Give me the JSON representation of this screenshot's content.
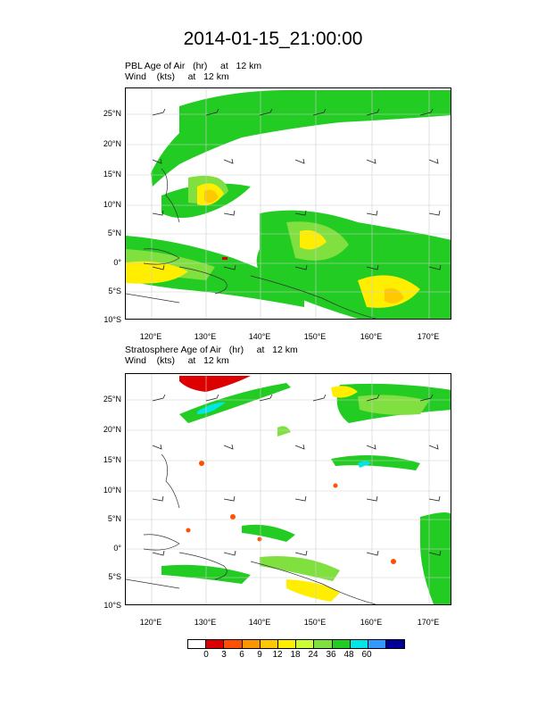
{
  "title": "2014-01-15_21:00:00",
  "panels": [
    {
      "line1": "PBL Age of Air   (hr)     at   12 km",
      "line2": "Wind    (kts)     at   12 km"
    },
    {
      "line1": "Stratosphere Age of Air   (hr)     at   12 km",
      "line2": "Wind    (kts)     at   12 km"
    }
  ],
  "lat_labels": [
    "25°N",
    "20°N",
    "15°N",
    "10°N",
    "5°N",
    "0°",
    "5°S",
    "10°S"
  ],
  "lon_labels": [
    "120°E",
    "130°E",
    "140°E",
    "150°E",
    "160°E",
    "170°E"
  ],
  "colorbar": {
    "colors": [
      "#ffffff",
      "#dd0000",
      "#ff5000",
      "#ff9600",
      "#ffc800",
      "#ffee00",
      "#ccff33",
      "#80e040",
      "#22cc22",
      "#00e6e6",
      "#3399ff",
      "#000099"
    ],
    "labels": [
      "0",
      "3",
      "6",
      "9",
      "12",
      "18",
      "24",
      "36",
      "48",
      "60"
    ]
  }
}
